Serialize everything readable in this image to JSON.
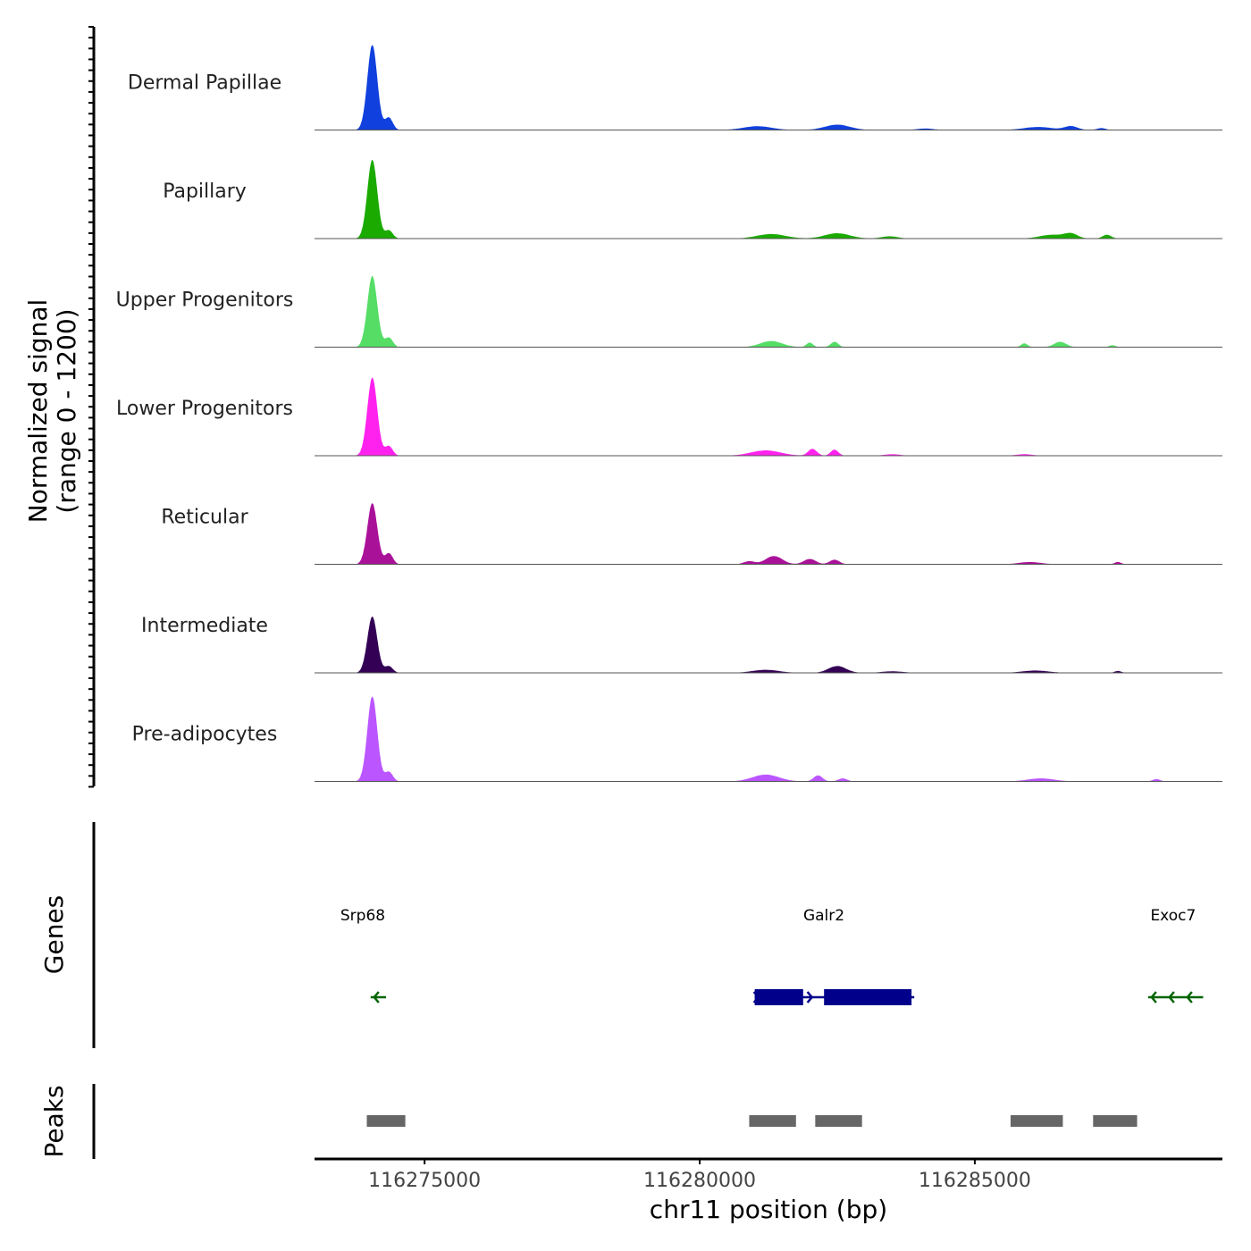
{
  "chart_data": {
    "type": "area",
    "chromosome": "chr11",
    "xlim": [
      116273000,
      116289500
    ],
    "x_ticks": [
      116275000,
      116280000,
      116285000
    ],
    "x_tick_labels": [
      "116275000",
      "116280000",
      "116285000"
    ],
    "xlabel": "chr11 position (bp)",
    "ylabel_line1": "Normalized signal",
    "ylabel_line2": "(range 0 - 1200)",
    "ylim": [
      0,
      1200
    ],
    "series": [
      {
        "name": "Dermal Papillae",
        "color": "#1040dd",
        "peaks": [
          [
            116274050,
            1200,
            90
          ],
          [
            116274350,
            170,
            70
          ],
          [
            116281050,
            50,
            260
          ],
          [
            116282500,
            70,
            230
          ],
          [
            116284100,
            20,
            150
          ],
          [
            116286150,
            40,
            260
          ],
          [
            116286750,
            50,
            120
          ],
          [
            116287300,
            25,
            80
          ]
        ]
      },
      {
        "name": "Papillary",
        "color": "#1aaa00",
        "peaks": [
          [
            116274050,
            1110,
            90
          ],
          [
            116274350,
            110,
            70
          ],
          [
            116281300,
            60,
            260
          ],
          [
            116282500,
            70,
            230
          ],
          [
            116283450,
            30,
            150
          ],
          [
            116286400,
            50,
            220
          ],
          [
            116286750,
            60,
            120
          ],
          [
            116287400,
            50,
            80
          ]
        ]
      },
      {
        "name": "Upper Progenitors",
        "color": "#55dd66",
        "peaks": [
          [
            116274050,
            1000,
            90
          ],
          [
            116274350,
            130,
            70
          ],
          [
            116281300,
            80,
            200
          ],
          [
            116282000,
            60,
            60
          ],
          [
            116282450,
            70,
            70
          ],
          [
            116285900,
            50,
            60
          ],
          [
            116286550,
            70,
            110
          ],
          [
            116287500,
            25,
            60
          ]
        ]
      },
      {
        "name": "Lower Progenitors",
        "color": "#ff22ee",
        "peaks": [
          [
            116274050,
            1100,
            90
          ],
          [
            116274350,
            130,
            70
          ],
          [
            116281200,
            70,
            270
          ],
          [
            116282050,
            90,
            80
          ],
          [
            116282450,
            80,
            70
          ],
          [
            116283500,
            20,
            150
          ],
          [
            116285900,
            20,
            150
          ]
        ]
      },
      {
        "name": "Reticular",
        "color": "#aa1199",
        "peaks": [
          [
            116274050,
            860,
            90
          ],
          [
            116274350,
            150,
            70
          ],
          [
            116280900,
            40,
            100
          ],
          [
            116281350,
            110,
            150
          ],
          [
            116282000,
            70,
            110
          ],
          [
            116282450,
            60,
            90
          ],
          [
            116286000,
            30,
            200
          ],
          [
            116287600,
            30,
            60
          ]
        ]
      },
      {
        "name": "Intermediate",
        "color": "#330055",
        "peaks": [
          [
            116274050,
            790,
            90
          ],
          [
            116274350,
            90,
            70
          ],
          [
            116281200,
            40,
            240
          ],
          [
            116282500,
            90,
            160
          ],
          [
            116283500,
            20,
            200
          ],
          [
            116286100,
            30,
            240
          ],
          [
            116287600,
            25,
            60
          ]
        ]
      },
      {
        "name": "Pre-adipocytes",
        "color": "#bb55ff",
        "peaks": [
          [
            116274050,
            1200,
            90
          ],
          [
            116274350,
            130,
            70
          ],
          [
            116281200,
            90,
            240
          ],
          [
            116282150,
            80,
            80
          ],
          [
            116282600,
            40,
            80
          ],
          [
            116286200,
            40,
            240
          ],
          [
            116288300,
            30,
            70
          ]
        ]
      }
    ],
    "genes_label": "Genes",
    "genes": [
      {
        "name": "Srp68",
        "color": "#006400",
        "strand": "-",
        "start": 116274020,
        "end": 116274300
      },
      {
        "name": "Galr2",
        "color": "#00008b",
        "strand": "+",
        "start": 116281000,
        "end": 116283900,
        "exons": [
          [
            116281000,
            116281880
          ],
          [
            116282260,
            116283850
          ]
        ]
      },
      {
        "name": "Exoc7",
        "color": "#006400",
        "strand": "-",
        "start": 116288150,
        "end": 116289150
      }
    ],
    "peaks_label": "Peaks",
    "peaks_track_color": "#666666",
    "peaks_regions": [
      [
        116273950,
        116274650
      ],
      [
        116280900,
        116281750
      ],
      [
        116282100,
        116282950
      ],
      [
        116285650,
        116286600
      ],
      [
        116287150,
        116287950
      ]
    ]
  }
}
